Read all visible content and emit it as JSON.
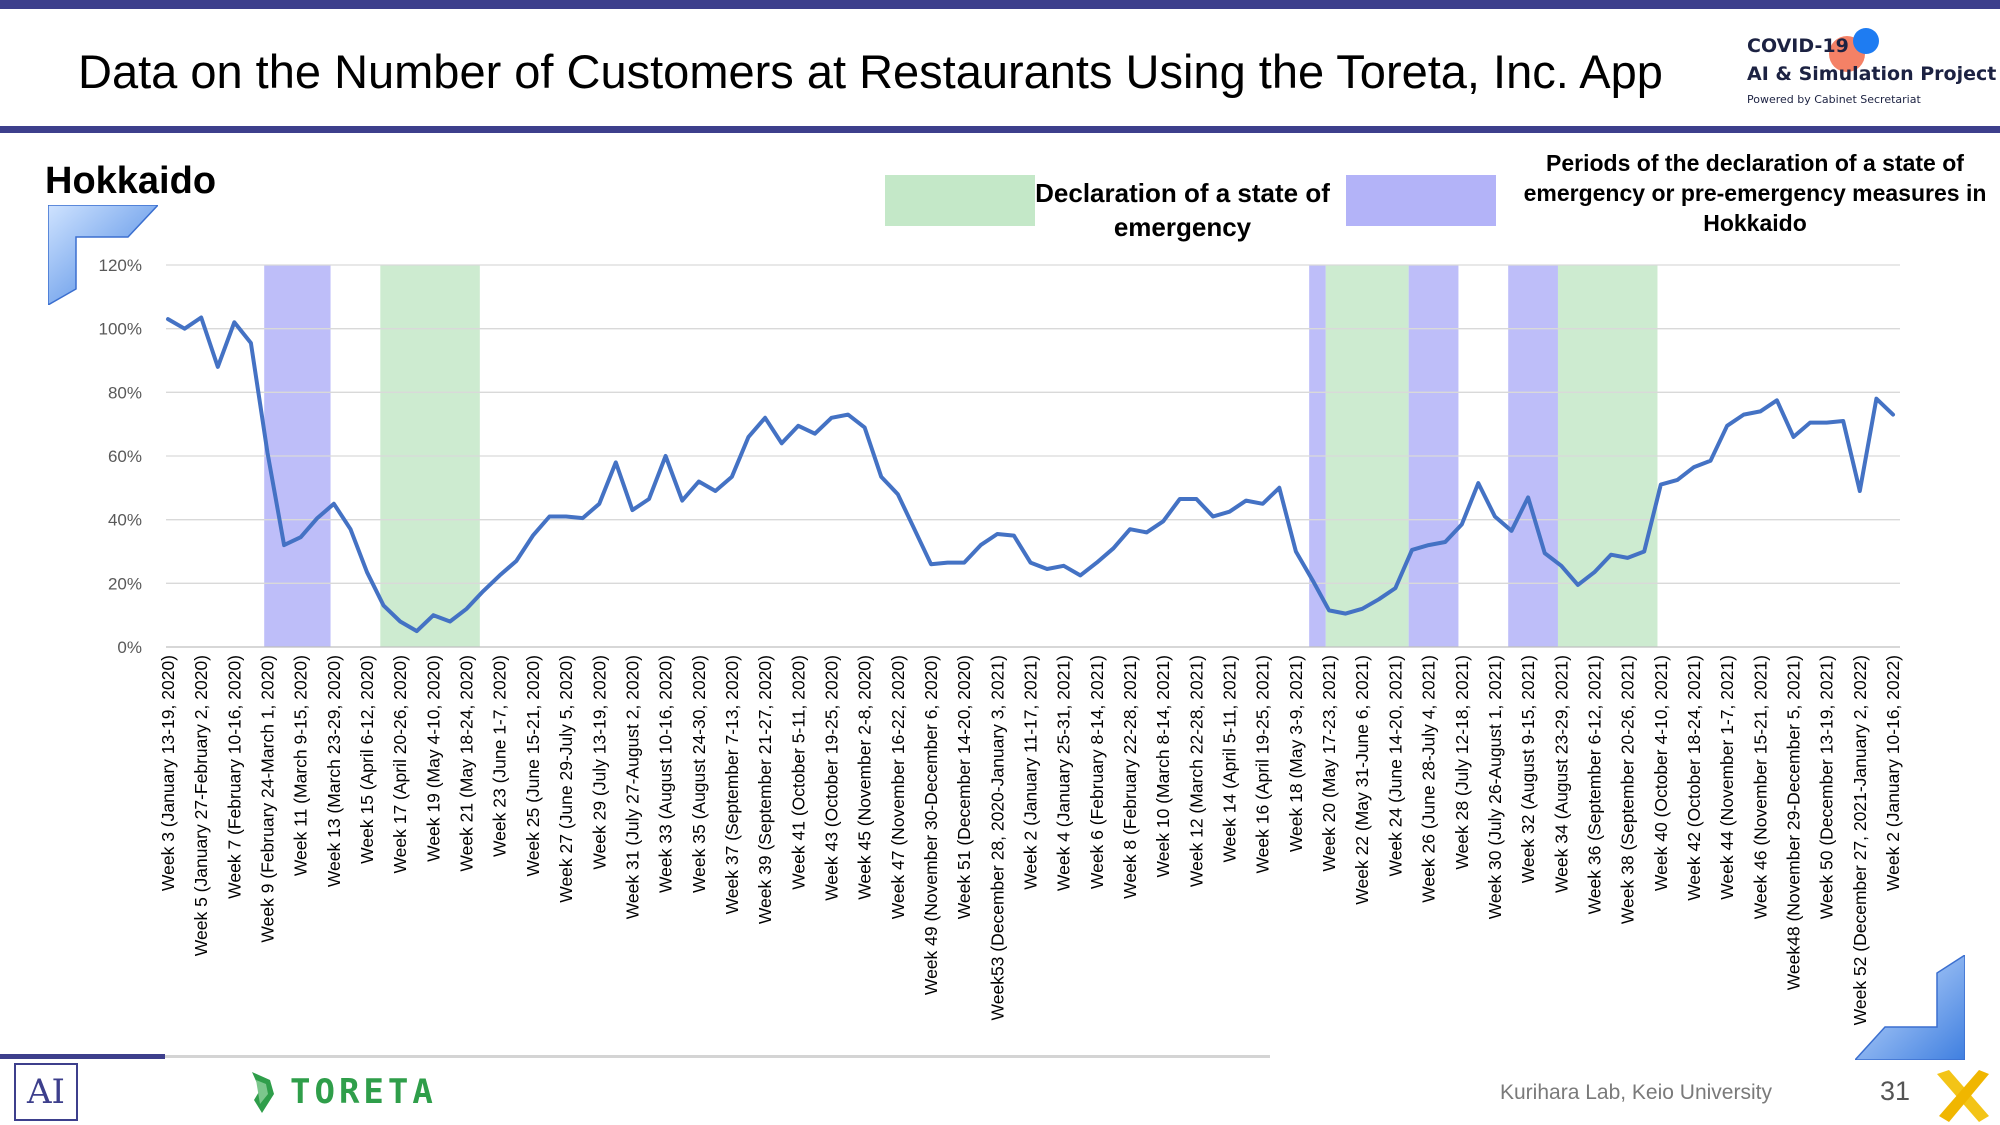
{
  "slide": {
    "title": "Data on the Number of Customers at Restaurants Using the Toreta, Inc. App",
    "region": "Hokkaido",
    "page_number": "31",
    "credit": "Kurihara Lab, Keio University",
    "logo": {
      "line1": "COVID-19",
      "line2": "AI & Simulation Project",
      "line3": "Powered by Cabinet Secretariat"
    },
    "footer_brand": "TORETA",
    "footer_ai_mark": "AI",
    "colors": {
      "bar": "#3d3f8c",
      "line": "#4472c4",
      "emergency": "#c4e8c8",
      "pre_emergency": "#b3b3f8",
      "toreta": "#2f9e4a"
    }
  },
  "chart_data": {
    "type": "line",
    "title": "",
    "xlabel": "",
    "ylabel": "",
    "ylim": [
      0,
      120
    ],
    "yticks": [
      "0%",
      "20%",
      "40%",
      "60%",
      "80%",
      "100%",
      "120%"
    ],
    "grid": true,
    "legend": [
      {
        "label": "Declaration of a state of emergency",
        "color": "#c4e8c8"
      },
      {
        "label": "Periods of the declaration of a state of emergency or pre-emergency measures in Hokkaido",
        "color": "#b3b3f8"
      }
    ],
    "tick_labels": [
      "Week 3 (January 13-19, 2020)",
      "Week 5 (January 27-February 2, 2020)",
      "Week 7 (February 10-16, 2020)",
      "Week 9 (February 24-March 1, 2020)",
      "Week 11 (March 9-15, 2020)",
      "Week 13 (March 23-29, 2020)",
      "Week 15 (April 6-12, 2020)",
      "Week 17 (April 20-26, 2020)",
      "Week 19 (May 4-10, 2020)",
      "Week 21 (May 18-24, 2020)",
      "Week 23 (June 1-7, 2020)",
      "Week 25 (June 15-21, 2020)",
      "Week 27 (June 29-July 5, 2020)",
      "Week 29 (July 13-19, 2020)",
      "Week 31 (July 27-August 2, 2020)",
      "Week 33 (August 10-16, 2020)",
      "Week 35 (August 24-30, 2020)",
      "Week 37 (September 7-13, 2020)",
      "Week 39 (September 21-27, 2020)",
      "Week 41 (October 5-11, 2020)",
      "Week 43 (October 19-25, 2020)",
      "Week 45 (November 2-8, 2020)",
      "Week 47 (November 16-22, 2020)",
      "Week 49 (November 30-December 6, 2020)",
      "Week 51 (December 14-20, 2020)",
      "Week53 (December 28, 2020-January 3, 2021)",
      "Week 2 (January 11-17, 2021)",
      "Week 4 (January 25-31, 2021)",
      "Week 6 (February 8-14, 2021)",
      "Week 8 (February 22-28, 2021)",
      "Week 10 (March 8-14, 2021)",
      "Week 12 (March 22-28, 2021)",
      "Week 14 (April 5-11, 2021)",
      "Week 16 (April 19-25, 2021)",
      "Week 18 (May 3-9, 2021)",
      "Week 20 (May 17-23, 2021)",
      "Week 22 (May 31-June 6, 2021)",
      "Week 24 (June 14-20, 2021)",
      "Week 26 (June 28-July 4, 2021)",
      "Week 28 (July 12-18, 2021)",
      "Week 30 (July 26-August 1, 2021)",
      "Week 32 (August 9-15, 2021)",
      "Week 34 (August 23-29, 2021)",
      "Week 36 (September 6-12, 2021)",
      "Week 38 (September 20-26, 2021)",
      "Week 40 (October 4-10, 2021)",
      "Week 42 (October 18-24, 2021)",
      "Week 44 (November 1-7, 2021)",
      "Week 46 (November 15-21, 2021)",
      "Week48 (November 29-December 5, 2021)",
      "Week 50 (December 13-19, 2021)",
      "Week 52 (December 27, 2021-January 2, 2022)",
      "Week 2 (January 10-16, 2022)"
    ],
    "series": [
      {
        "values": [
          103,
          100,
          103.5,
          88,
          102,
          95.5,
          61,
          32,
          34.5,
          40.5,
          45,
          37,
          23.5,
          13,
          8,
          5,
          10,
          8,
          12,
          17.5,
          22.5,
          27,
          35,
          41,
          41,
          40.5,
          45,
          58,
          43,
          46.5,
          60,
          46,
          52,
          49,
          53.5,
          66,
          72,
          64,
          69.5,
          67,
          72,
          73,
          69,
          53.5,
          48,
          37,
          26,
          26.5,
          26.5,
          32,
          35.5,
          35,
          26.5,
          24.5,
          25.5,
          22.5,
          26.5,
          31,
          37,
          36,
          39.5,
          46.5,
          46.5,
          41,
          42.5,
          46,
          45,
          50,
          30,
          21,
          11.5,
          10.5,
          12,
          15,
          18.5,
          30.5,
          32,
          33,
          38.5,
          51.5,
          41,
          36.5,
          47,
          29.5,
          25.5,
          19.5,
          23.5,
          29,
          28,
          30,
          51,
          52.5,
          56.5,
          58.5,
          69.5,
          73,
          74,
          77.5,
          66,
          70.5,
          70.5,
          71,
          49,
          78,
          73
        ]
      }
    ],
    "shaded_periods": [
      {
        "type": "pre-emergency",
        "start_index": 5.8,
        "end_index": 9.8
      },
      {
        "type": "emergency",
        "start_index": 12.8,
        "end_index": 18.8
      },
      {
        "type": "pre-emergency",
        "start_index": 68.8,
        "end_index": 69.8
      },
      {
        "type": "emergency",
        "start_index": 69.8,
        "end_index": 74.8
      },
      {
        "type": "pre-emergency",
        "start_index": 74.8,
        "end_index": 77.8
      },
      {
        "type": "pre-emergency",
        "start_index": 80.8,
        "end_index": 83.8
      },
      {
        "type": "emergency",
        "start_index": 83.8,
        "end_index": 89.8
      }
    ]
  }
}
